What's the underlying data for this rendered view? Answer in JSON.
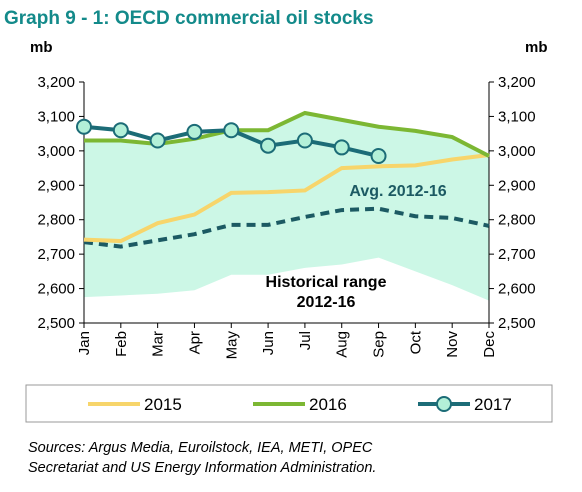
{
  "chart_data": {
    "type": "line",
    "title": "Graph 9 - 1: OECD commercial oil stocks",
    "y_label": "mb",
    "y2_label": "mb",
    "categories": [
      "Jan",
      "Feb",
      "Mar",
      "Apr",
      "May",
      "Jun",
      "Jul",
      "Aug",
      "Sep",
      "Oct",
      "Nov",
      "Dec"
    ],
    "ylim": [
      2500,
      3200
    ],
    "yticks": [
      {
        "value": 2500,
        "label": "2,500"
      },
      {
        "value": 2600,
        "label": "2,600"
      },
      {
        "value": 2700,
        "label": "2,700"
      },
      {
        "value": 2800,
        "label": "2,800"
      },
      {
        "value": 2900,
        "label": "2,900"
      },
      {
        "value": 3000,
        "label": "3,000"
      },
      {
        "value": 3100,
        "label": "3,100"
      },
      {
        "value": 3200,
        "label": "3,200"
      }
    ],
    "y2lim": [
      2500,
      3200
    ],
    "y2ticks": [
      {
        "value": 2500,
        "label": "2,500"
      },
      {
        "value": 2600,
        "label": "2,600"
      },
      {
        "value": 2700,
        "label": "2,700"
      },
      {
        "value": 2800,
        "label": "2,800"
      },
      {
        "value": 2900,
        "label": "2,900"
      },
      {
        "value": 3000,
        "label": "3,000"
      },
      {
        "value": 3100,
        "label": "3,100"
      },
      {
        "value": 3200,
        "label": "3,200"
      }
    ],
    "range": {
      "label_lines": [
        "Historical range",
        "2012-16"
      ],
      "color": "#ccf7e6",
      "upper": [
        3030,
        3030,
        3020,
        3035,
        3060,
        3060,
        3110,
        3090,
        3070,
        3058,
        3040,
        2985
      ],
      "lower": [
        2575,
        2580,
        2585,
        2595,
        2640,
        2640,
        2660,
        2670,
        2690,
        2650,
        2610,
        2565
      ]
    },
    "average": {
      "label": "Avg. 2012-16",
      "color": "#1c5a63",
      "values": [
        2735,
        2722,
        2740,
        2758,
        2785,
        2785,
        2808,
        2828,
        2832,
        2810,
        2805,
        2782
      ]
    },
    "series": [
      {
        "name": "2015",
        "color": "#f7d56b",
        "values": [
          2742,
          2738,
          2790,
          2815,
          2878,
          2880,
          2885,
          2950,
          2955,
          2958,
          2975,
          2988
        ]
      },
      {
        "name": "2016",
        "color": "#7cb733",
        "values": [
          3030,
          3030,
          3020,
          3035,
          3060,
          3060,
          3110,
          3090,
          3070,
          3058,
          3040,
          2985
        ]
      },
      {
        "name": "2017",
        "color": "#1c6c77",
        "marker_fill": "#b3f0d8",
        "values": [
          3070,
          3060,
          3030,
          3055,
          3060,
          3015,
          3030,
          3010,
          2985,
          null,
          null,
          null
        ]
      }
    ],
    "source": [
      "Sources: Argus Media, Euroilstock, IEA, METI, OPEC",
      "Secretariat and US Energy Information Administration."
    ]
  }
}
